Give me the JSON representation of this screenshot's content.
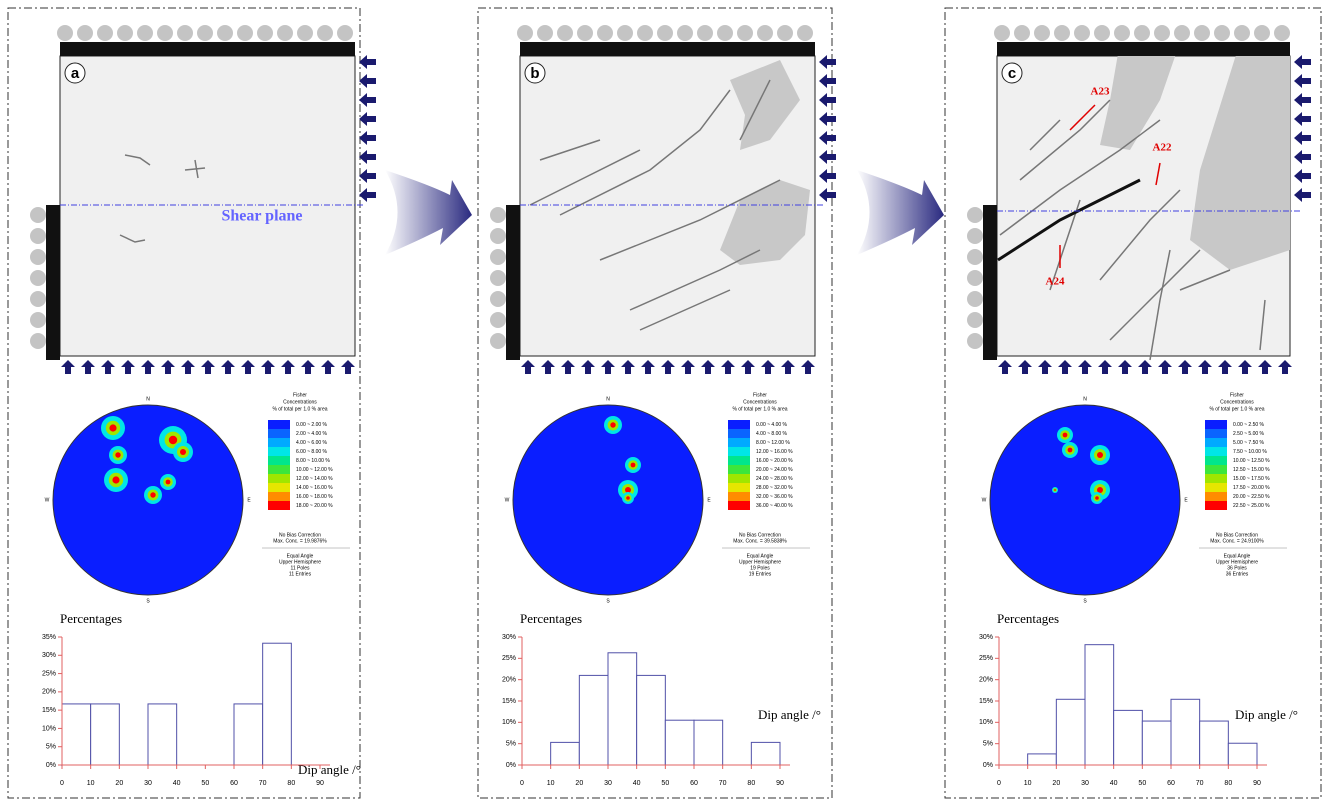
{
  "panels": [
    {
      "label": "a",
      "annotations": [
        "Shear plane"
      ],
      "stereonet": {
        "compass": [
          "N",
          "E",
          "S",
          "W"
        ],
        "legend_title": [
          "Fisher",
          "Concentrations",
          "% of total per 1.0 % area"
        ],
        "ranges": [
          "0.00 ~ 2.00 %",
          "2.00 ~ 4.00 %",
          "4.00 ~ 6.00 %",
          "6.00 ~ 8.00 %",
          "8.00 ~ 10.00 %",
          "10.00 ~ 12.00 %",
          "12.00 ~ 14.00 %",
          "14.00 ~ 16.00 %",
          "16.00 ~ 18.00 %",
          "18.00 ~ 20.00 %"
        ],
        "notes": [
          "No Bias Correction",
          "Max. Conc. = 19.9876%"
        ],
        "info": [
          "Equal Angle",
          "Upper Hemisphere",
          "11 Poles",
          "11 Entries"
        ]
      }
    },
    {
      "label": "b",
      "annotations": [],
      "stereonet": {
        "compass": [
          "N",
          "E",
          "S",
          "W"
        ],
        "legend_title": [
          "Fisher",
          "Concentrations",
          "% of total per 1.0 % area"
        ],
        "ranges": [
          "0.00 ~ 4.00 %",
          "4.00 ~ 8.00 %",
          "8.00 ~ 12.00 %",
          "12.00 ~ 16.00 %",
          "16.00 ~ 20.00 %",
          "20.00 ~ 24.00 %",
          "24.00 ~ 28.00 %",
          "28.00 ~ 32.00 %",
          "32.00 ~ 36.00 %",
          "36.00 ~ 40.00 %"
        ],
        "notes": [
          "No Bias Correction",
          "Max. Conc. = 39.5838%"
        ],
        "info": [
          "Equal Angle",
          "Upper Hemisphere",
          "19 Poles",
          "19 Entries"
        ]
      }
    },
    {
      "label": "c",
      "annotations": [
        "A23",
        "A22",
        "A24"
      ],
      "stereonet": {
        "compass": [
          "N",
          "E",
          "S",
          "W"
        ],
        "legend_title": [
          "Fisher",
          "Concentrations",
          "% of total per 1.0 % area"
        ],
        "ranges": [
          "0.00 ~ 2.50 %",
          "2.50 ~ 5.00 %",
          "5.00 ~ 7.50 %",
          "7.50 ~ 10.00 %",
          "10.00 ~ 12.50 %",
          "12.50 ~ 15.00 %",
          "15.00 ~ 17.50 %",
          "17.50 ~ 20.00 %",
          "20.00 ~ 22.50 %",
          "22.50 ~ 25.00 %"
        ],
        "notes": [
          "No Bias Correction",
          "Max. Conc. = 24.9100%"
        ],
        "info": [
          "Equal Angle",
          "Upper Hemisphere",
          "36 Poles",
          "36 Entries"
        ]
      }
    }
  ],
  "legend_colors": [
    "#0a1eff",
    "#0a64ff",
    "#00aaff",
    "#00e6e6",
    "#00e68c",
    "#3ce63c",
    "#a0e600",
    "#e6e600",
    "#ff8c00",
    "#ff0000"
  ],
  "chart_data": [
    {
      "type": "histogram",
      "y_label": "Percentages",
      "x_label": "Dip angle /°",
      "color": "#5050a8",
      "axis_color": "#e06060",
      "bins": [
        0,
        10,
        20,
        30,
        40,
        50,
        60,
        70,
        80,
        90
      ],
      "values": [
        16.7,
        16.7,
        0,
        16.7,
        0,
        0,
        16.7,
        33.3,
        0
      ],
      "xlim": [
        0,
        90
      ],
      "xticks": [
        0,
        10,
        20,
        30,
        40,
        50,
        60,
        70,
        80,
        90
      ],
      "ylim": [
        0,
        35
      ],
      "yticks": [
        {
          "value": 0,
          "label": "0%"
        },
        {
          "value": 5,
          "label": "5%"
        },
        {
          "value": 10,
          "label": "10%"
        },
        {
          "value": 15,
          "label": "15%"
        },
        {
          "value": 20,
          "label": "20%"
        },
        {
          "value": 25,
          "label": "25%"
        },
        {
          "value": 30,
          "label": "30%"
        },
        {
          "value": 35,
          "label": "35%"
        }
      ]
    },
    {
      "type": "histogram",
      "y_label": "Percentages",
      "x_label": "Dip angle /°",
      "color": "#5050a8",
      "axis_color": "#e06060",
      "bins": [
        0,
        10,
        20,
        30,
        40,
        50,
        60,
        70,
        80,
        90
      ],
      "values": [
        0,
        5.3,
        21,
        26.3,
        21,
        10.5,
        10.5,
        0,
        5.3
      ],
      "xlim": [
        0,
        90
      ],
      "xticks": [
        0,
        10,
        20,
        30,
        40,
        50,
        60,
        70,
        80,
        90
      ],
      "ylim": [
        0,
        30
      ],
      "yticks": [
        {
          "value": 0,
          "label": "0%"
        },
        {
          "value": 5,
          "label": "5%"
        },
        {
          "value": 10,
          "label": "10%"
        },
        {
          "value": 15,
          "label": "15%"
        },
        {
          "value": 20,
          "label": "20%"
        },
        {
          "value": 25,
          "label": "25%"
        },
        {
          "value": 30,
          "label": "30%"
        }
      ]
    },
    {
      "type": "histogram",
      "y_label": "Percentages",
      "x_label": "Dip angle /°",
      "color": "#5050a8",
      "axis_color": "#e06060",
      "bins": [
        0,
        10,
        20,
        30,
        40,
        50,
        60,
        70,
        80,
        90
      ],
      "values": [
        0,
        2.6,
        15.4,
        28.2,
        12.8,
        10.3,
        15.4,
        10.3,
        5.1
      ],
      "xlim": [
        0,
        90
      ],
      "xticks": [
        0,
        10,
        20,
        30,
        40,
        50,
        60,
        70,
        80,
        90
      ],
      "ylim": [
        0,
        30
      ],
      "yticks": [
        {
          "value": 0,
          "label": "0%"
        },
        {
          "value": 5,
          "label": "5%"
        },
        {
          "value": 10,
          "label": "10%"
        },
        {
          "value": 15,
          "label": "15%"
        },
        {
          "value": 20,
          "label": "20%"
        },
        {
          "value": 25,
          "label": "25%"
        },
        {
          "value": 30,
          "label": "30%"
        }
      ]
    }
  ]
}
